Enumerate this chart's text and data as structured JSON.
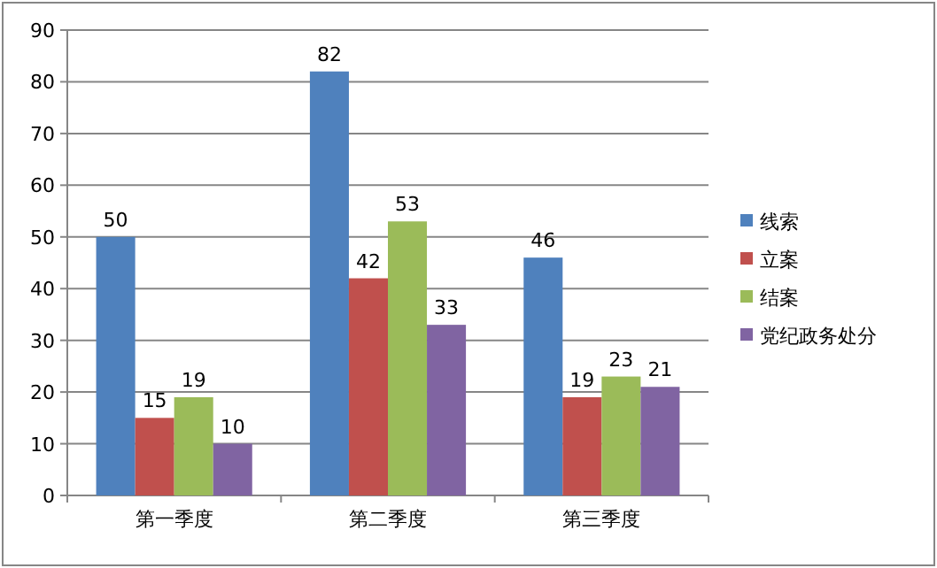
{
  "chart_data": {
    "type": "bar",
    "categories": [
      "第一季度",
      "第二季度",
      "第三季度"
    ],
    "series": [
      {
        "name": "线索",
        "color": "#4f81bd",
        "values": [
          50,
          82,
          46
        ]
      },
      {
        "name": "立案",
        "color": "#c0504d",
        "values": [
          15,
          42,
          19
        ]
      },
      {
        "name": "结案",
        "color": "#9bbb59",
        "values": [
          19,
          53,
          23
        ]
      },
      {
        "name": "党纪政务处分",
        "color": "#8064a2",
        "values": [
          10,
          33,
          21
        ]
      }
    ],
    "ylim": [
      0,
      90
    ],
    "yticks": [
      0,
      10,
      20,
      30,
      40,
      50,
      60,
      70,
      80,
      90
    ],
    "grid": "y",
    "legend": "right",
    "data_labels": true
  }
}
